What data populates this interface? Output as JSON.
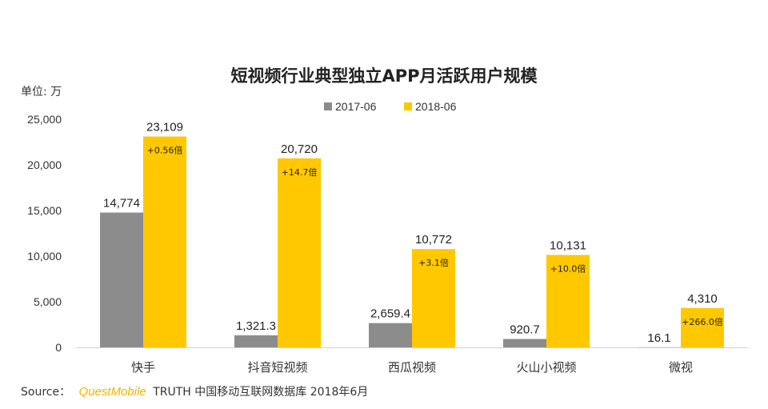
{
  "chart_data": {
    "type": "bar",
    "title": "短视频行业典型独立APP月活跃用户规模",
    "unit_label": "单位: 万",
    "categories": [
      "快手",
      "抖音短视频",
      "西瓜视频",
      "火山小视频",
      "微视"
    ],
    "series": [
      {
        "name": "2017-06",
        "color": "#8c8c8c",
        "values": [
          14774,
          1321.3,
          2659.4,
          920.7,
          16.1
        ],
        "labels": [
          "14,774",
          "1,321.3",
          "2,659.4",
          "920.7",
          "16.1"
        ]
      },
      {
        "name": "2018-06",
        "color": "#ffc800",
        "values": [
          23109,
          20720,
          10772,
          10131,
          4310
        ],
        "labels": [
          "23,109",
          "20,720",
          "10,772",
          "10,131",
          "4,310"
        ]
      }
    ],
    "growth_labels": [
      "+0.56倍",
      "+14.7倍",
      "+3.1倍",
      "+10.0倍",
      "+266.0倍"
    ],
    "ylim": [
      0,
      25000
    ],
    "yticks": [
      0,
      5000,
      10000,
      15000,
      20000,
      25000
    ],
    "ytick_labels": [
      "0",
      "5,000",
      "10,000",
      "15,000",
      "20,000",
      "25,000"
    ],
    "grid": false,
    "legend_position": "top-center"
  },
  "footer": {
    "source_prefix": "Source：",
    "brand": "QuestMobile",
    "source_rest": "TRUTH 中国移动互联网数据库 2018年6月"
  }
}
